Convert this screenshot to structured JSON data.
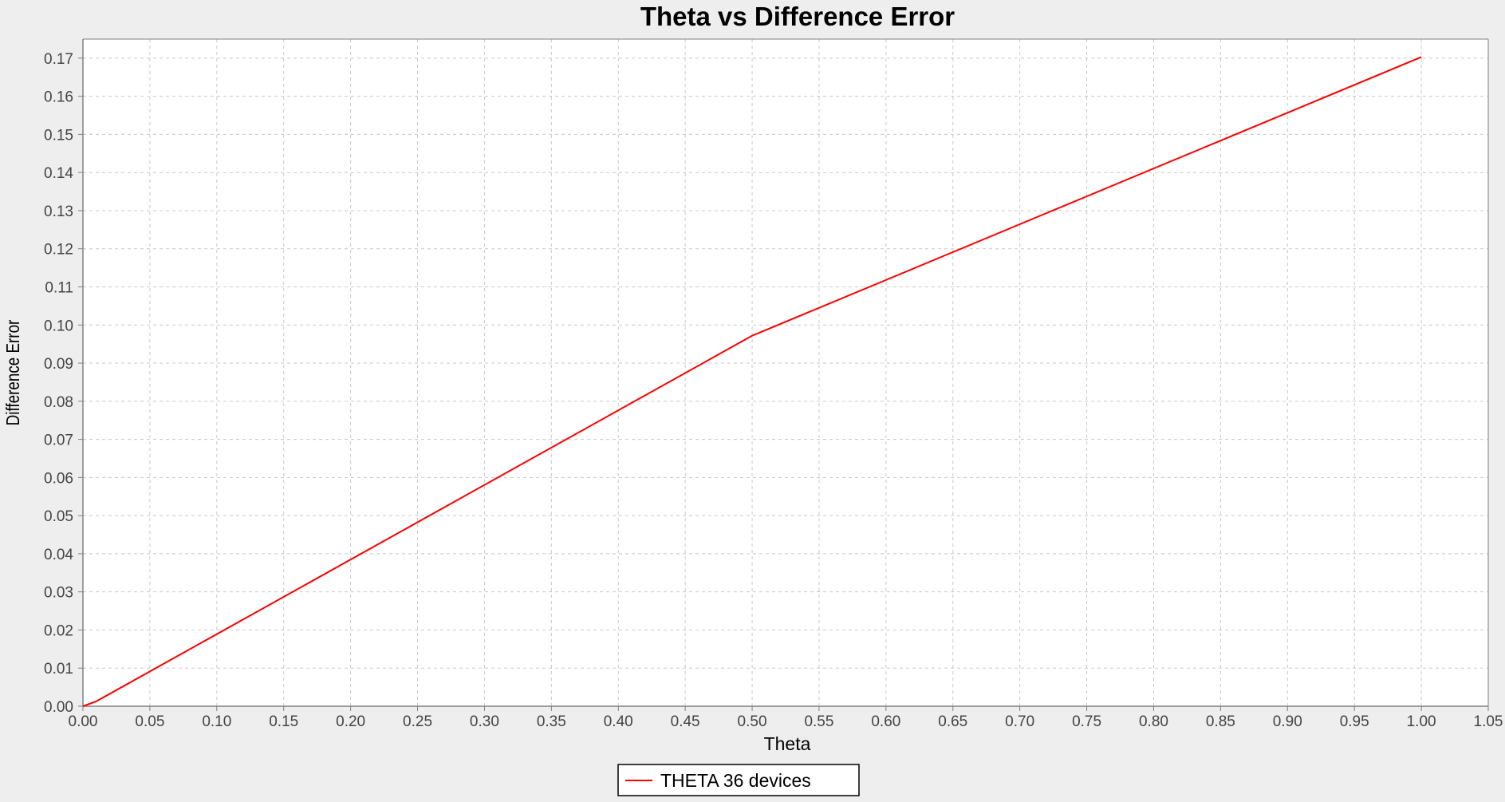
{
  "chart_data": {
    "type": "line",
    "title": "Theta vs Difference Error",
    "xlabel": "Theta",
    "ylabel": "Difference Error",
    "xlim": [
      0.0,
      1.05
    ],
    "ylim": [
      0.0,
      0.175
    ],
    "x_ticks": [
      "0.00",
      "0.05",
      "0.10",
      "0.15",
      "0.20",
      "0.25",
      "0.30",
      "0.35",
      "0.40",
      "0.45",
      "0.50",
      "0.55",
      "0.60",
      "0.65",
      "0.70",
      "0.75",
      "0.80",
      "0.85",
      "0.90",
      "0.95",
      "1.00",
      "1.05"
    ],
    "y_ticks": [
      "0.00",
      "0.01",
      "0.02",
      "0.03",
      "0.04",
      "0.05",
      "0.06",
      "0.07",
      "0.08",
      "0.09",
      "0.10",
      "0.11",
      "0.12",
      "0.13",
      "0.14",
      "0.15",
      "0.16",
      "0.17"
    ],
    "grid": true,
    "legend_position": "bottom-center",
    "series": [
      {
        "name": "THETA 36 devices",
        "color": "#ff0000",
        "x": [
          0.0,
          0.01,
          0.5,
          1.0
        ],
        "y": [
          0.0,
          0.0013,
          0.0972,
          0.1703
        ]
      }
    ]
  }
}
